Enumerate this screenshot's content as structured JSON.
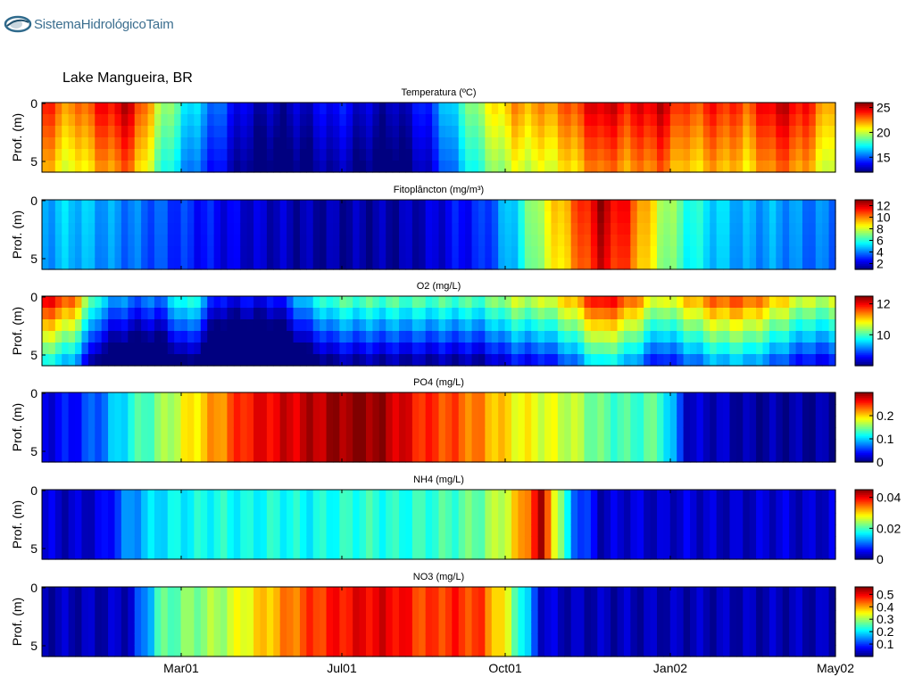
{
  "header": {
    "logo_text": "SistemaHidrológicoTaim",
    "site_label": "Lake Mangueira, BR"
  },
  "colors": {
    "colormap": "jet",
    "axes": "#000000",
    "background": "#ffffff"
  },
  "chart_data": [
    {
      "type": "heatmap",
      "title": "Temperatura (ºC)",
      "ylabel": "Prof. (m)",
      "yticks": [
        "0",
        "5"
      ],
      "xticks": [
        "Mar01",
        "Jul01",
        "Oct01",
        "Jan02",
        "May02"
      ],
      "clim": [
        12,
        26
      ],
      "cticks": [
        {
          "v": 25,
          "label": "25"
        },
        {
          "v": 20,
          "label": "20"
        },
        {
          "v": 15,
          "label": "15"
        }
      ],
      "profile": [
        24,
        22,
        24,
        25,
        20,
        17,
        15,
        13,
        12.5,
        13,
        14,
        13,
        12.5,
        14,
        17,
        20,
        22,
        22,
        23,
        25,
        24,
        25,
        23,
        24,
        23,
        25,
        24,
        21
      ],
      "depth_factor": 0.92
    },
    {
      "type": "heatmap",
      "title": "Fitoplâncton (mg/m³)",
      "ylabel": "Prof. (m)",
      "yticks": [
        "0",
        "5"
      ],
      "xticks": [
        "Mar01",
        "Jul01",
        "Oct01",
        "Jan02",
        "May02"
      ],
      "clim": [
        1,
        13
      ],
      "cticks": [
        {
          "v": 12,
          "label": "12"
        },
        {
          "v": 10,
          "label": "10"
        },
        {
          "v": 8,
          "label": "8"
        },
        {
          "v": 6,
          "label": "6"
        },
        {
          "v": 4,
          "label": "4"
        },
        {
          "v": 2,
          "label": "2"
        }
      ],
      "profile": [
        4.5,
        5,
        4.5,
        4,
        3.5,
        3,
        2.5,
        2,
        1.8,
        1.5,
        1.5,
        1.5,
        1.5,
        1.8,
        2.5,
        3,
        5,
        8,
        10,
        12.5,
        11,
        8,
        6,
        5,
        4.5,
        4.5,
        4,
        4
      ],
      "depth_factor": 0.95
    },
    {
      "type": "heatmap",
      "title": "O2 (mg/L)",
      "ylabel": "Prof. (m)",
      "yticks": [
        "0",
        "5"
      ],
      "xticks": [
        "Mar01",
        "Jul01",
        "Oct01",
        "Jan02",
        "May02"
      ],
      "clim": [
        8,
        12.5
      ],
      "cticks": [
        {
          "v": 12,
          "label": "12"
        },
        {
          "v": 10,
          "label": "10"
        }
      ],
      "profile": [
        12,
        11.5,
        9.5,
        9,
        9,
        10,
        8.5,
        8.5,
        8.5,
        9.5,
        10,
        10,
        10,
        10,
        10,
        10,
        10.5,
        10.5,
        11,
        12,
        11.5,
        10.5,
        11,
        11.5,
        11.5,
        11,
        10.5,
        10.5
      ],
      "depth_factor": 0.82
    },
    {
      "type": "heatmap",
      "title": "PO4 (mg/L)",
      "ylabel": "Prof. (m)",
      "yticks": [
        "0",
        "5"
      ],
      "xticks": [
        "Mar01",
        "Jul01",
        "Oct01",
        "Jan02",
        "May02"
      ],
      "clim": [
        0,
        0.3
      ],
      "cticks": [
        {
          "v": 0.2,
          "label": "0.2"
        },
        {
          "v": 0.1,
          "label": "0.1"
        },
        {
          "v": 0,
          "label": "0"
        }
      ],
      "profile": [
        0.03,
        0.04,
        0.07,
        0.12,
        0.15,
        0.19,
        0.22,
        0.26,
        0.27,
        0.28,
        0.29,
        0.3,
        0.28,
        0.25,
        0.24,
        0.22,
        0.19,
        0.18,
        0.17,
        0.14,
        0.13,
        0.14,
        0.02,
        0.02,
        0.01,
        0.01,
        0.01,
        0.01
      ],
      "depth_factor": 1.0
    },
    {
      "type": "heatmap",
      "title": "NH4 (mg/L)",
      "ylabel": "Prof. (m)",
      "yticks": [
        "0",
        "5"
      ],
      "xticks": [
        "Mar01",
        "Jul01",
        "Oct01",
        "Jan02",
        "May02"
      ],
      "clim": [
        0,
        0.045
      ],
      "cticks": [
        {
          "v": 0.04,
          "label": "0.04"
        },
        {
          "v": 0.02,
          "label": "0.02"
        },
        {
          "v": 0,
          "label": "0"
        }
      ],
      "profile": [
        0.004,
        0.003,
        0.004,
        0.012,
        0.016,
        0.017,
        0.018,
        0.017,
        0.018,
        0.017,
        0.018,
        0.019,
        0.018,
        0.019,
        0.02,
        0.022,
        0.028,
        0.042,
        0.012,
        0.003,
        0.004,
        0.003,
        0.004,
        0.003,
        0.003,
        0.004,
        0.003,
        0.004
      ],
      "depth_factor": 1.0
    },
    {
      "type": "heatmap",
      "title": "NO3 (mg/L)",
      "ylabel": "Prof. (m)",
      "yticks": [
        "0",
        "5"
      ],
      "xticks": [
        "Mar01",
        "Jul01",
        "Oct01",
        "Jan02",
        "May02"
      ],
      "clim": [
        0,
        0.56
      ],
      "cticks": [
        {
          "v": 0.5,
          "label": "0.5"
        },
        {
          "v": 0.4,
          "label": "0.4"
        },
        {
          "v": 0.3,
          "label": "0.3"
        },
        {
          "v": 0.2,
          "label": "0.2"
        },
        {
          "v": 0.1,
          "label": "0.1"
        }
      ],
      "profile": [
        0.03,
        0.03,
        0.03,
        0.04,
        0.25,
        0.28,
        0.3,
        0.35,
        0.4,
        0.45,
        0.48,
        0.5,
        0.5,
        0.45,
        0.47,
        0.45,
        0.3,
        0.05,
        0.03,
        0.03,
        0.03,
        0.03,
        0.03,
        0.03,
        0.03,
        0.03,
        0.03,
        0.03
      ],
      "depth_factor": 1.0
    }
  ]
}
